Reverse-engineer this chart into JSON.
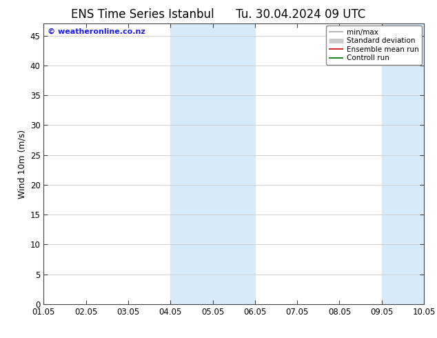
{
  "title_left": "ENS Time Series Istanbul",
  "title_right": "Tu. 30.04.2024 09 UTC",
  "ylabel": "Wind 10m (m/s)",
  "ylim": [
    0,
    47
  ],
  "yticks": [
    0,
    5,
    10,
    15,
    20,
    25,
    30,
    35,
    40,
    45
  ],
  "xtick_labels": [
    "01.05",
    "02.05",
    "03.05",
    "04.05",
    "05.05",
    "06.05",
    "07.05",
    "08.05",
    "09.05",
    "10.05"
  ],
  "num_xticks": 10,
  "xlim": [
    0,
    9
  ],
  "shade_bands": [
    {
      "xmin": 3.0,
      "xmax": 5.0,
      "color": "#d8eaf8"
    },
    {
      "xmin": 8.0,
      "xmax": 10.0,
      "color": "#d8eaf8"
    }
  ],
  "legend_entries": [
    {
      "label": "min/max",
      "color": "#aaaaaa",
      "lw": 1.2
    },
    {
      "label": "Standard deviation",
      "color": "#cccccc",
      "lw": 5
    },
    {
      "label": "Ensemble mean run",
      "color": "#cc0000",
      "lw": 1.2
    },
    {
      "label": "Controll run",
      "color": "#006600",
      "lw": 1.2
    }
  ],
  "watermark": "© weatheronline.co.nz",
  "watermark_color": "#1a1aff",
  "bg_color": "#ffffff",
  "plot_bg_color": "#ffffff",
  "title_fontsize": 12,
  "ylabel_fontsize": 9,
  "tick_fontsize": 8.5,
  "legend_fontsize": 7.5,
  "grid_color": "#cccccc",
  "spine_color": "#444444"
}
